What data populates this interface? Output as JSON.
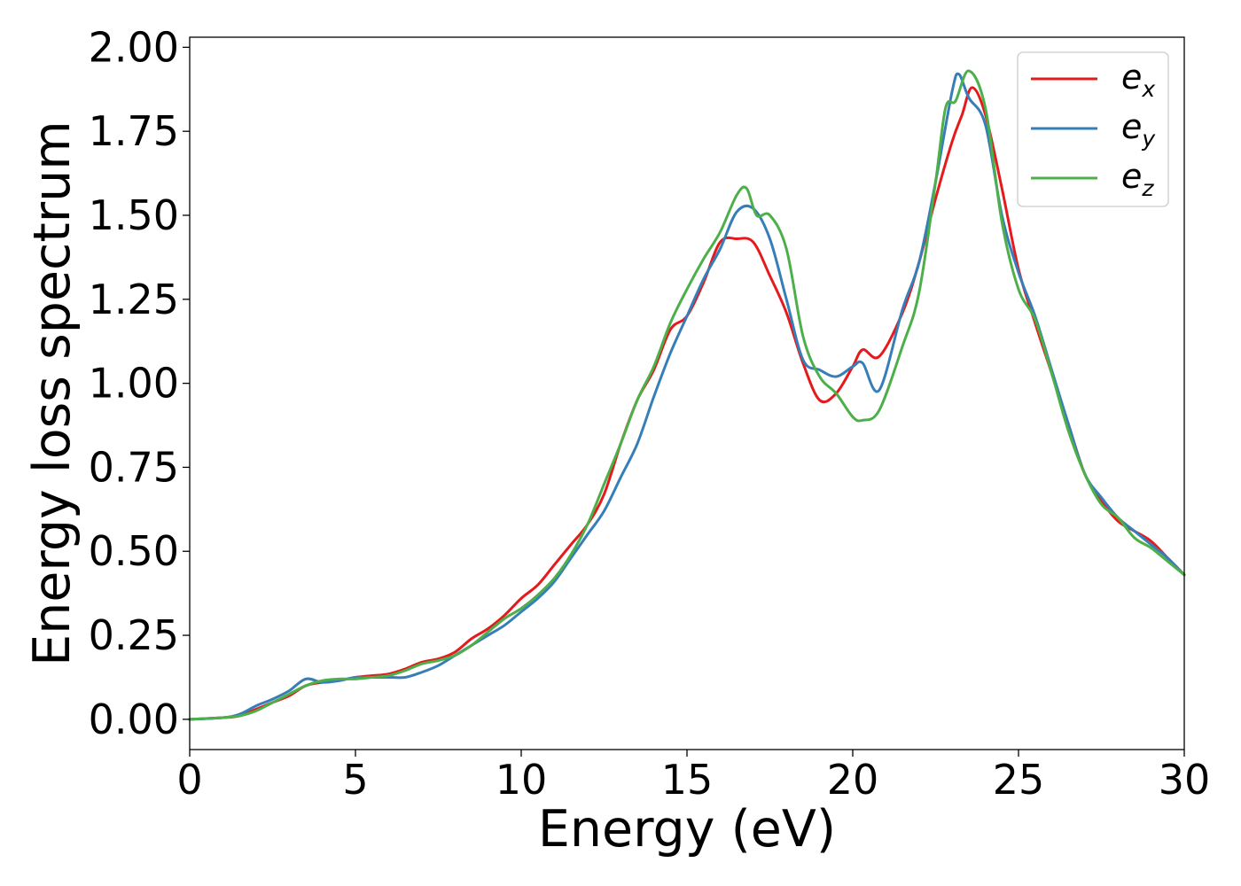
{
  "chart_data": {
    "type": "line",
    "title": "",
    "xlabel": "Energy (eV)",
    "ylabel": "Energy loss spectrum",
    "xlim": [
      0,
      30
    ],
    "ylim": [
      -0.09,
      2.03
    ],
    "xticks": [
      0,
      5,
      10,
      15,
      20,
      25,
      30
    ],
    "xtick_labels": [
      "0",
      "5",
      "10",
      "15",
      "20",
      "25",
      "30"
    ],
    "yticks": [
      0,
      0.25,
      0.5,
      0.75,
      1.0,
      1.25,
      1.5,
      1.75,
      2.0
    ],
    "ytick_labels": [
      "0.00",
      "0.25",
      "0.50",
      "0.75",
      "1.00",
      "1.25",
      "1.50",
      "1.75",
      "2.00"
    ],
    "grid": false,
    "legend_position": "top-right",
    "series": [
      {
        "name": "e",
        "subscript": "x",
        "color": "#e41a1c",
        "x": [
          0,
          1,
          1.5,
          2,
          2.5,
          3,
          3.5,
          4,
          4.5,
          5,
          5.5,
          6,
          6.5,
          7,
          7.5,
          8,
          8.5,
          9,
          9.5,
          10,
          10.5,
          11,
          11.5,
          12,
          12.5,
          13,
          13.5,
          14,
          14.5,
          15,
          15.5,
          16,
          16.5,
          17,
          17.5,
          18,
          18.5,
          19,
          19.5,
          20,
          20.3,
          20.8,
          21.5,
          22,
          22.5,
          23,
          23.3,
          23.6,
          24,
          24.5,
          25,
          25.5,
          26,
          26.5,
          27,
          27.5,
          28,
          28.5,
          29,
          29.5,
          30
        ],
        "y": [
          0,
          0.005,
          0.01,
          0.03,
          0.05,
          0.07,
          0.1,
          0.11,
          0.115,
          0.125,
          0.13,
          0.135,
          0.15,
          0.17,
          0.18,
          0.2,
          0.24,
          0.27,
          0.31,
          0.36,
          0.4,
          0.46,
          0.52,
          0.58,
          0.67,
          0.82,
          0.95,
          1.04,
          1.16,
          1.2,
          1.3,
          1.42,
          1.43,
          1.42,
          1.32,
          1.21,
          1.06,
          0.95,
          0.97,
          1.05,
          1.1,
          1.08,
          1.21,
          1.36,
          1.55,
          1.72,
          1.8,
          1.88,
          1.8,
          1.58,
          1.34,
          1.18,
          1.03,
          0.88,
          0.73,
          0.65,
          0.59,
          0.56,
          0.53,
          0.48,
          0.43
        ]
      },
      {
        "name": "e",
        "subscript": "y",
        "color": "#377eb8",
        "x": [
          0,
          1,
          1.5,
          2,
          2.5,
          3,
          3.5,
          4,
          4.5,
          5,
          5.5,
          6,
          6.5,
          7,
          7.5,
          8,
          8.5,
          9,
          9.5,
          10,
          10.5,
          11,
          11.5,
          12,
          12.5,
          13,
          13.5,
          14,
          14.5,
          15,
          15.5,
          16,
          16.5,
          17,
          17.5,
          18,
          18.5,
          19,
          19.5,
          20,
          20.3,
          20.8,
          21.5,
          22,
          22.5,
          23,
          23.2,
          23.5,
          24,
          24.5,
          25,
          25.5,
          26,
          26.5,
          27,
          27.5,
          28,
          28.5,
          29,
          29.5,
          30
        ],
        "y": [
          0,
          0.005,
          0.015,
          0.04,
          0.06,
          0.085,
          0.12,
          0.11,
          0.115,
          0.125,
          0.125,
          0.125,
          0.125,
          0.14,
          0.16,
          0.19,
          0.22,
          0.25,
          0.28,
          0.32,
          0.36,
          0.41,
          0.48,
          0.55,
          0.62,
          0.72,
          0.82,
          0.96,
          1.09,
          1.2,
          1.31,
          1.4,
          1.51,
          1.52,
          1.43,
          1.25,
          1.07,
          1.04,
          1.02,
          1.05,
          1.06,
          0.98,
          1.22,
          1.36,
          1.6,
          1.87,
          1.92,
          1.85,
          1.77,
          1.5,
          1.33,
          1.2,
          1.04,
          0.88,
          0.73,
          0.66,
          0.6,
          0.56,
          0.52,
          0.48,
          0.43
        ]
      },
      {
        "name": "e",
        "subscript": "z",
        "color": "#4daf4a",
        "x": [
          0,
          1,
          1.5,
          2,
          2.5,
          3,
          3.5,
          4,
          4.5,
          5,
          5.5,
          6,
          6.5,
          7,
          7.5,
          8,
          8.5,
          9,
          9.5,
          10,
          10.5,
          11,
          11.5,
          12,
          12.5,
          13,
          13.5,
          14,
          14.5,
          15,
          15.5,
          16,
          16.5,
          16.8,
          17.1,
          17.5,
          18,
          18.5,
          19,
          19.5,
          20,
          20.3,
          20.8,
          21.5,
          22,
          22.5,
          22.8,
          23.1,
          23.5,
          24,
          24.5,
          25,
          25.5,
          26,
          26.5,
          27,
          27.5,
          28,
          28.5,
          29,
          29.5,
          30
        ],
        "y": [
          0,
          0.005,
          0.01,
          0.025,
          0.05,
          0.075,
          0.1,
          0.115,
          0.12,
          0.12,
          0.125,
          0.13,
          0.145,
          0.165,
          0.175,
          0.19,
          0.22,
          0.26,
          0.3,
          0.33,
          0.37,
          0.42,
          0.49,
          0.58,
          0.7,
          0.82,
          0.95,
          1.05,
          1.18,
          1.28,
          1.37,
          1.45,
          1.56,
          1.58,
          1.5,
          1.5,
          1.4,
          1.14,
          1.02,
          0.97,
          0.9,
          0.89,
          0.92,
          1.11,
          1.27,
          1.6,
          1.82,
          1.84,
          1.93,
          1.82,
          1.48,
          1.28,
          1.19,
          1.03,
          0.86,
          0.73,
          0.64,
          0.6,
          0.54,
          0.51,
          0.47,
          0.43
        ]
      }
    ]
  }
}
